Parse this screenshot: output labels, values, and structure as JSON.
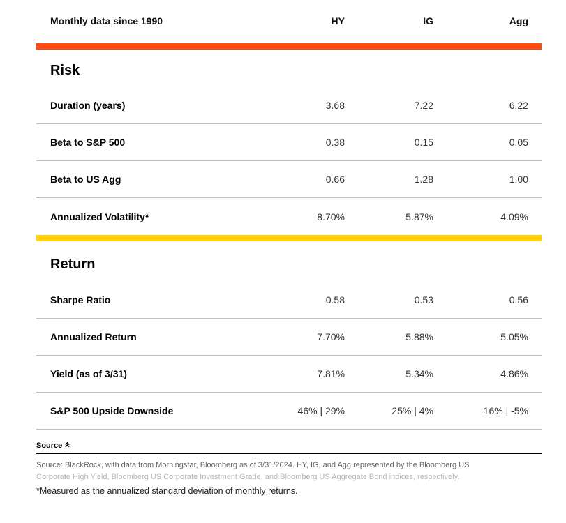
{
  "header": {
    "label": "Monthly data since 1990",
    "columns": [
      "HY",
      "IG",
      "Agg"
    ]
  },
  "colors": {
    "risk_band": "#ff4a12",
    "return_band": "#ffd10a"
  },
  "sections": [
    {
      "title": "Risk",
      "rows": [
        {
          "label": "Duration (years)",
          "values": [
            "3.68",
            "7.22",
            "6.22"
          ]
        },
        {
          "label": "Beta to S&P 500",
          "values": [
            "0.38",
            "0.15",
            "0.05"
          ]
        },
        {
          "label": "Beta to US Agg",
          "values": [
            "0.66",
            "1.28",
            "1.00"
          ]
        },
        {
          "label": "Annualized Volatility*",
          "values": [
            "8.70%",
            "5.87%",
            "4.09%"
          ]
        }
      ]
    },
    {
      "title": "Return",
      "rows": [
        {
          "label": "Sharpe Ratio",
          "values": [
            "0.58",
            "0.53",
            "0.56"
          ]
        },
        {
          "label": "Annualized Return",
          "values": [
            "7.70%",
            "5.88%",
            "5.05%"
          ]
        },
        {
          "label": "Yield (as of 3/31)",
          "values": [
            "7.81%",
            "5.34%",
            "4.86%"
          ]
        },
        {
          "label": "S&P 500 Upside Downside",
          "values": [
            "46% | 29%",
            "25% | 4%",
            "16% | -5%"
          ]
        }
      ]
    }
  ],
  "source": {
    "toggle_label": "Source",
    "toggle_icon": "chevron-up-double-icon",
    "text_line1": "Source: BlackRock, with data from Morningstar, Bloomberg as of 3/31/2024. HY, IG, and Agg represented by the Bloomberg US",
    "text_line2": "Corporate High Yield, Bloomberg US Corporate Investment Grade, and Bloomberg US Aggregate Bond indices, respectively."
  },
  "footnote": "*Measured as the annualized standard deviation of monthly returns."
}
